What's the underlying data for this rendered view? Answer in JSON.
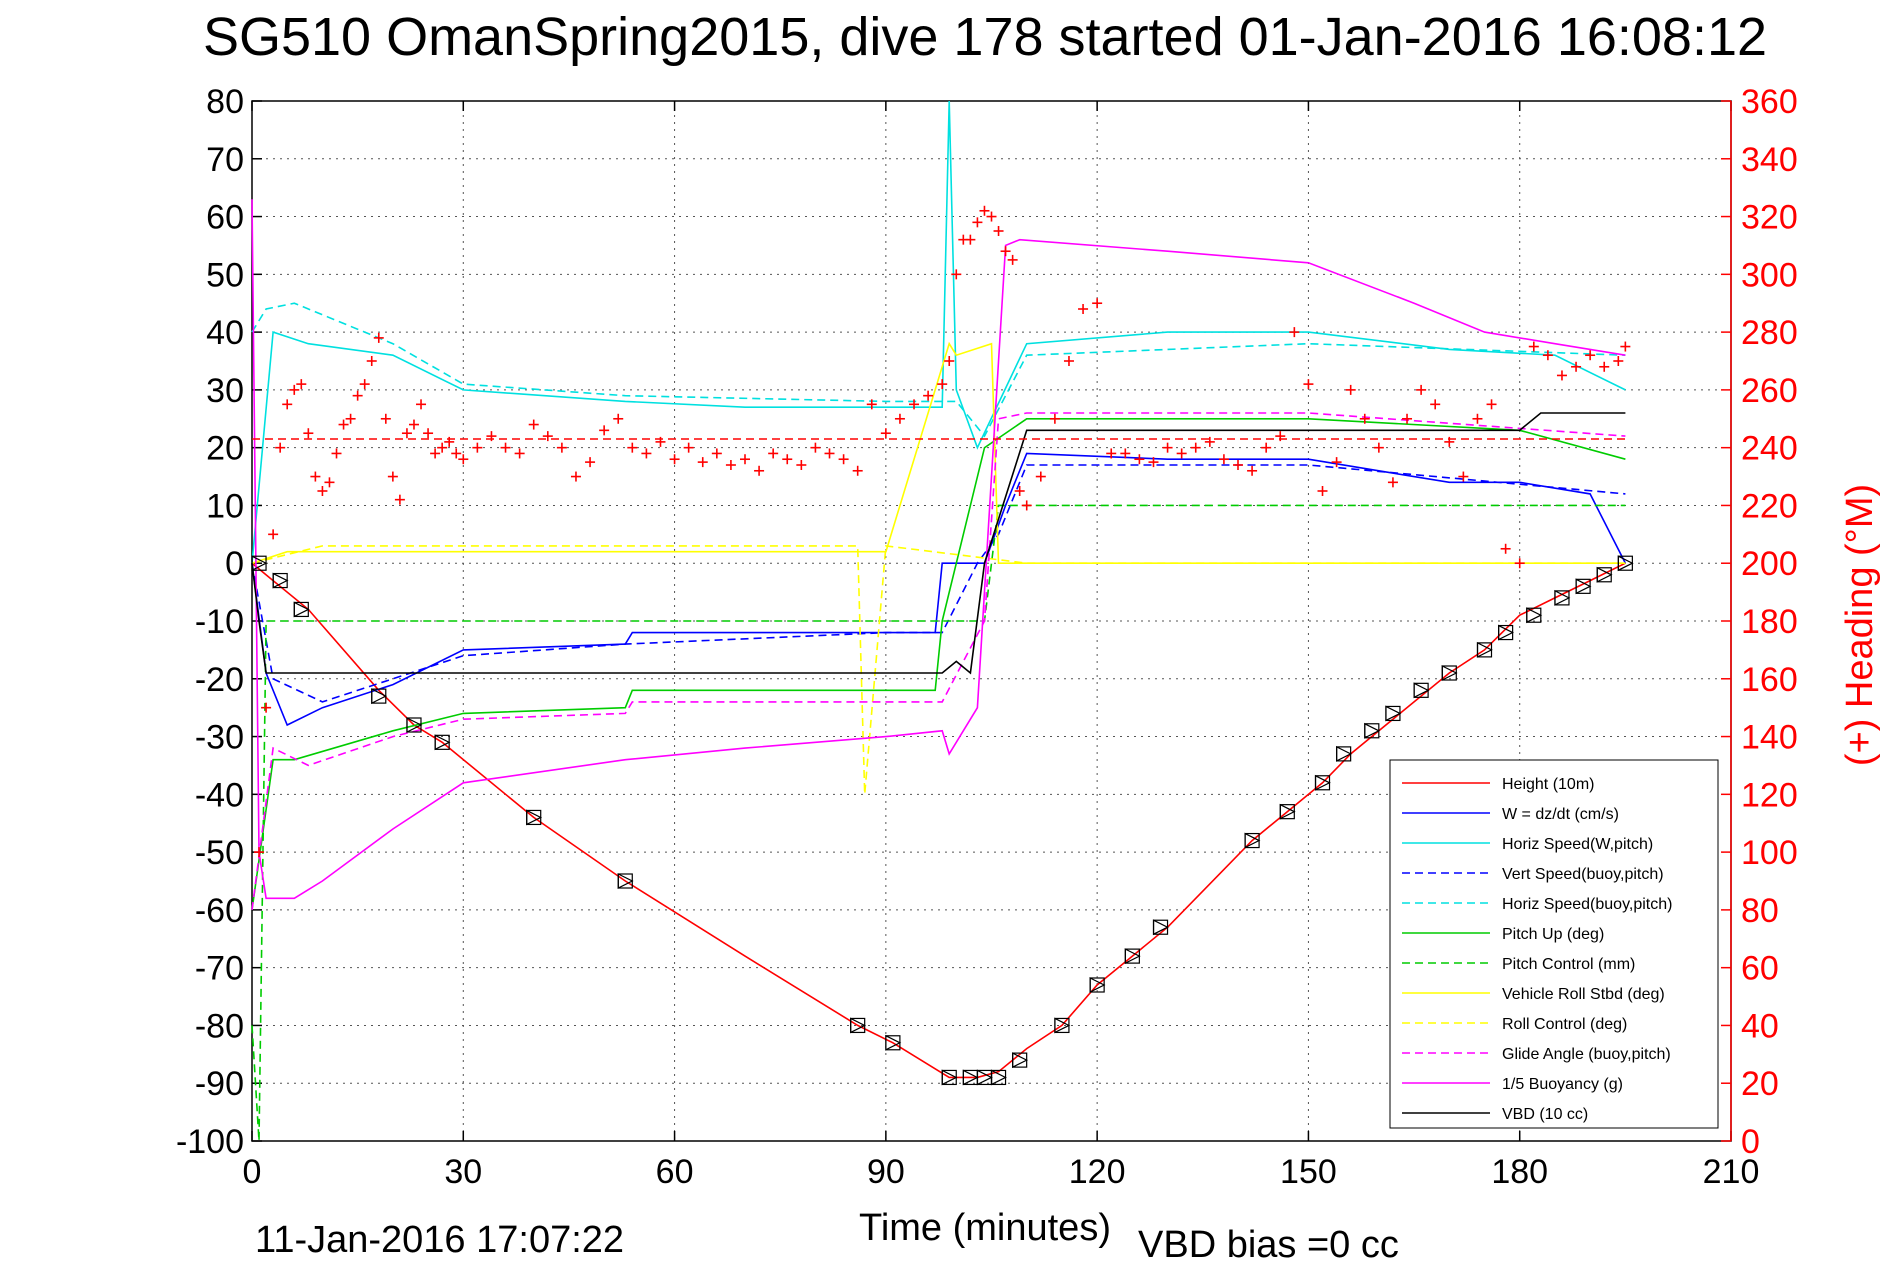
{
  "chart_data": {
    "type": "line",
    "title": "SG510 OmanSpring2015, dive 178 started 01-Jan-2016 16:08:12",
    "xlabel": "Time (minutes)",
    "ylabel": "",
    "ylabel_right": "(+) Heading (°M)",
    "footer_left": "11-Jan-2016 17:07:22",
    "footer_right": "VBD bias =0 cc",
    "xlim": [
      0,
      210
    ],
    "ylim": [
      -100,
      80
    ],
    "ylim_right": [
      0,
      360
    ],
    "x_ticks": [
      "0",
      "30",
      "60",
      "90",
      "120",
      "150",
      "180",
      "210"
    ],
    "y_ticks": [
      "80",
      "70",
      "60",
      "50",
      "40",
      "30",
      "20",
      "10",
      "0",
      "-10",
      "-20",
      "-30",
      "-40",
      "-50",
      "-60",
      "-70",
      "-80",
      "-90",
      "-100"
    ],
    "y_ticks_right": [
      "360",
      "340",
      "320",
      "300",
      "280",
      "260",
      "240",
      "220",
      "200",
      "180",
      "160",
      "140",
      "120",
      "100",
      "80",
      "60",
      "40",
      "20",
      "0"
    ],
    "grid": true,
    "legend_position": "bottom-right",
    "series": [
      {
        "name": "Height (10m)",
        "color": "#ff0000",
        "style": "solid",
        "x": [
          0,
          3,
          8,
          18,
          23,
          27,
          40,
          53,
          70,
          86,
          91,
          99,
          103,
          106,
          110,
          115,
          120,
          125,
          130,
          142,
          147,
          152,
          156,
          163,
          170,
          175,
          180,
          185,
          190,
          195
        ],
        "y": [
          0,
          -3,
          -8,
          -22,
          -28,
          -31,
          -44,
          -55,
          -68,
          -80,
          -83,
          -89,
          -89,
          -88,
          -84,
          -80,
          -73,
          -68,
          -63,
          -48,
          -43,
          -38,
          -33,
          -26,
          -19,
          -15,
          -9,
          -6,
          -3,
          0
        ]
      },
      {
        "name": "W = dz/dt (cm/s)",
        "color": "#0000ff",
        "style": "solid",
        "x": [
          0,
          2,
          5,
          10,
          20,
          30,
          53,
          54,
          70,
          90,
          97,
          98,
          104,
          107,
          110,
          130,
          150,
          160,
          170,
          180,
          190,
          195
        ],
        "y": [
          0,
          -19,
          -28,
          -25,
          -21,
          -15,
          -14,
          -12,
          -12,
          -12,
          -12,
          0,
          0,
          10,
          19,
          18,
          18,
          16,
          14,
          14,
          12,
          0
        ]
      },
      {
        "name": "Horiz Speed(W,pitch)",
        "color": "#00e0e0",
        "style": "solid",
        "x": [
          0,
          3,
          8,
          20,
          30,
          53,
          70,
          90,
          98,
          99,
          100,
          103,
          110,
          130,
          150,
          170,
          185,
          195
        ],
        "y": [
          0,
          40,
          38,
          36,
          30,
          28,
          27,
          27,
          27,
          80,
          30,
          20,
          38,
          40,
          40,
          37,
          36,
          30
        ]
      },
      {
        "name": "Vert Speed(buoy,pitch)",
        "color": "#0000ff",
        "style": "dashed",
        "x": [
          0,
          3,
          10,
          30,
          53,
          90,
          98,
          103,
          106,
          110,
          150,
          195
        ],
        "y": [
          0,
          -20,
          -24,
          -16,
          -14,
          -12,
          -12,
          0,
          5,
          17,
          17,
          12
        ]
      },
      {
        "name": "Horiz Speed(buoy,pitch)",
        "color": "#00e0e0",
        "style": "dashed",
        "x": [
          0,
          2,
          6,
          20,
          30,
          53,
          90,
          100,
          104,
          110,
          150,
          195
        ],
        "y": [
          40,
          44,
          45,
          38,
          31,
          29,
          28,
          28,
          22,
          36,
          38,
          36
        ]
      },
      {
        "name": "Pitch Up (deg)",
        "color": "#00cc00",
        "style": "solid",
        "x": [
          0,
          3,
          6,
          20,
          30,
          53,
          54,
          90,
          97,
          98,
          104,
          110,
          150,
          180,
          195
        ],
        "y": [
          -60,
          -34,
          -34,
          -29,
          -26,
          -25,
          -22,
          -22,
          -22,
          -10,
          20,
          25,
          25,
          23,
          18
        ]
      },
      {
        "name": "Pitch Control (mm)",
        "color": "#00cc00",
        "style": "dashed",
        "x": [
          0,
          1,
          2,
          10,
          53,
          97,
          98,
          104,
          106,
          195
        ],
        "y": [
          -80,
          -100,
          -10,
          -10,
          -10,
          -10,
          -10,
          -10,
          10,
          10
        ]
      },
      {
        "name": "Vehicle Roll Stbd (deg)",
        "color": "#ffff00",
        "style": "solid",
        "x": [
          0,
          5,
          20,
          40,
          60,
          90,
          99,
          100,
          105,
          106,
          110,
          130,
          150,
          170,
          195
        ],
        "y": [
          0,
          2,
          2,
          2,
          2,
          2,
          38,
          36,
          38,
          0,
          0,
          0,
          0,
          0,
          0
        ]
      },
      {
        "name": "Roll Control (deg)",
        "color": "#ffff00",
        "style": "dashed",
        "x": [
          0,
          10,
          40,
          86,
          87,
          90,
          110,
          150,
          195
        ],
        "y": [
          0,
          3,
          3,
          3,
          -40,
          3,
          0,
          0,
          0
        ]
      },
      {
        "name": "Glide Angle (buoy,pitch)",
        "color": "#ff00ff",
        "style": "dashed",
        "x": [
          0,
          3,
          8,
          20,
          30,
          53,
          54,
          90,
          98,
          104,
          106,
          110,
          150,
          195
        ],
        "y": [
          -60,
          -32,
          -35,
          -30,
          -27,
          -26,
          -24,
          -24,
          -24,
          -10,
          25,
          26,
          26,
          22
        ]
      },
      {
        "name": "1/5 Buoyancy (g)",
        "color": "#ff00ff",
        "style": "solid",
        "x": [
          0,
          1,
          2,
          6,
          10,
          20,
          30,
          53,
          70,
          90,
          98,
          99,
          103,
          107,
          109,
          130,
          150,
          165,
          175,
          185,
          195
        ],
        "y": [
          63,
          -50,
          -58,
          -58,
          -55,
          -46,
          -38,
          -34,
          -32,
          -30,
          -29,
          -33,
          -25,
          55,
          56,
          54,
          52,
          45,
          40,
          38,
          36
        ]
      },
      {
        "name": "VBD (10 cc)",
        "color": "#000000",
        "style": "solid",
        "x": [
          0,
          1,
          2,
          50,
          90,
          98,
          100,
          102,
          104,
          110,
          130,
          150,
          180,
          183,
          195
        ],
        "y": [
          0,
          -10,
          -19,
          -19,
          -19,
          -19,
          -17,
          -19,
          0,
          23,
          23,
          23,
          23,
          26,
          26
        ]
      }
    ],
    "reference_line": {
      "color": "#ff0000",
      "style": "dashed",
      "y_right": 243,
      "x": [
        0,
        195
      ]
    },
    "heading_marks": {
      "color": "#ff0000",
      "marker": "+",
      "axis": "right",
      "x": [
        1,
        2,
        3,
        4,
        5,
        6,
        7,
        8,
        9,
        10,
        11,
        12,
        13,
        14,
        15,
        16,
        17,
        18,
        19,
        20,
        21,
        22,
        23,
        24,
        25,
        26,
        27,
        28,
        29,
        30,
        32,
        34,
        36,
        38,
        40,
        42,
        44,
        46,
        48,
        50,
        52,
        54,
        56,
        58,
        60,
        62,
        64,
        66,
        68,
        70,
        72,
        74,
        76,
        78,
        80,
        82,
        84,
        86,
        88,
        90,
        92,
        94,
        96,
        98,
        99,
        100,
        101,
        102,
        103,
        104,
        105,
        106,
        107,
        108,
        109,
        110,
        112,
        114,
        116,
        118,
        120,
        122,
        124,
        126,
        128,
        130,
        132,
        134,
        136,
        138,
        140,
        142,
        144,
        146,
        148,
        150,
        152,
        154,
        156,
        158,
        160,
        162,
        164,
        166,
        168,
        170,
        172,
        174,
        176,
        178,
        180,
        182,
        184,
        186,
        188,
        190,
        192,
        194,
        195
      ],
      "y": [
        100,
        150,
        210,
        240,
        255,
        260,
        262,
        245,
        230,
        225,
        228,
        238,
        248,
        250,
        258,
        262,
        270,
        278,
        250,
        230,
        222,
        245,
        248,
        255,
        245,
        238,
        240,
        242,
        238,
        236,
        240,
        244,
        240,
        238,
        248,
        244,
        240,
        230,
        235,
        246,
        250,
        240,
        238,
        242,
        236,
        240,
        235,
        238,
        234,
        236,
        232,
        238,
        236,
        234,
        240,
        238,
        236,
        232,
        255,
        245,
        250,
        255,
        258,
        262,
        270,
        300,
        312,
        312,
        318,
        322,
        320,
        315,
        308,
        305,
        225,
        220,
        230,
        250,
        270,
        288,
        290,
        238,
        238,
        236,
        235,
        240,
        238,
        240,
        242,
        236,
        234,
        232,
        240,
        244,
        280,
        262,
        225,
        235,
        260,
        250,
        240,
        228,
        250,
        260,
        255,
        242,
        230,
        250,
        255,
        205,
        200,
        275,
        272,
        265,
        268,
        272,
        268,
        270,
        275
      ]
    },
    "markers": {
      "color": "#000000",
      "marker": "triangle-box",
      "x": [
        1,
        4,
        7,
        18,
        23,
        27,
        40,
        53,
        86,
        91,
        99,
        102,
        104,
        106,
        109,
        115,
        120,
        125,
        129,
        142,
        147,
        152,
        155,
        159,
        162,
        166,
        170,
        175,
        178,
        182,
        186,
        189,
        192,
        195
      ],
      "y": [
        0,
        -3,
        -8,
        -23,
        -28,
        -31,
        -44,
        -55,
        -80,
        -83,
        -89,
        -89,
        -89,
        -89,
        -86,
        -80,
        -73,
        -68,
        -63,
        -48,
        -43,
        -38,
        -33,
        -29,
        -26,
        -22,
        -19,
        -15,
        -12,
        -9,
        -6,
        -4,
        -2,
        0
      ]
    }
  }
}
